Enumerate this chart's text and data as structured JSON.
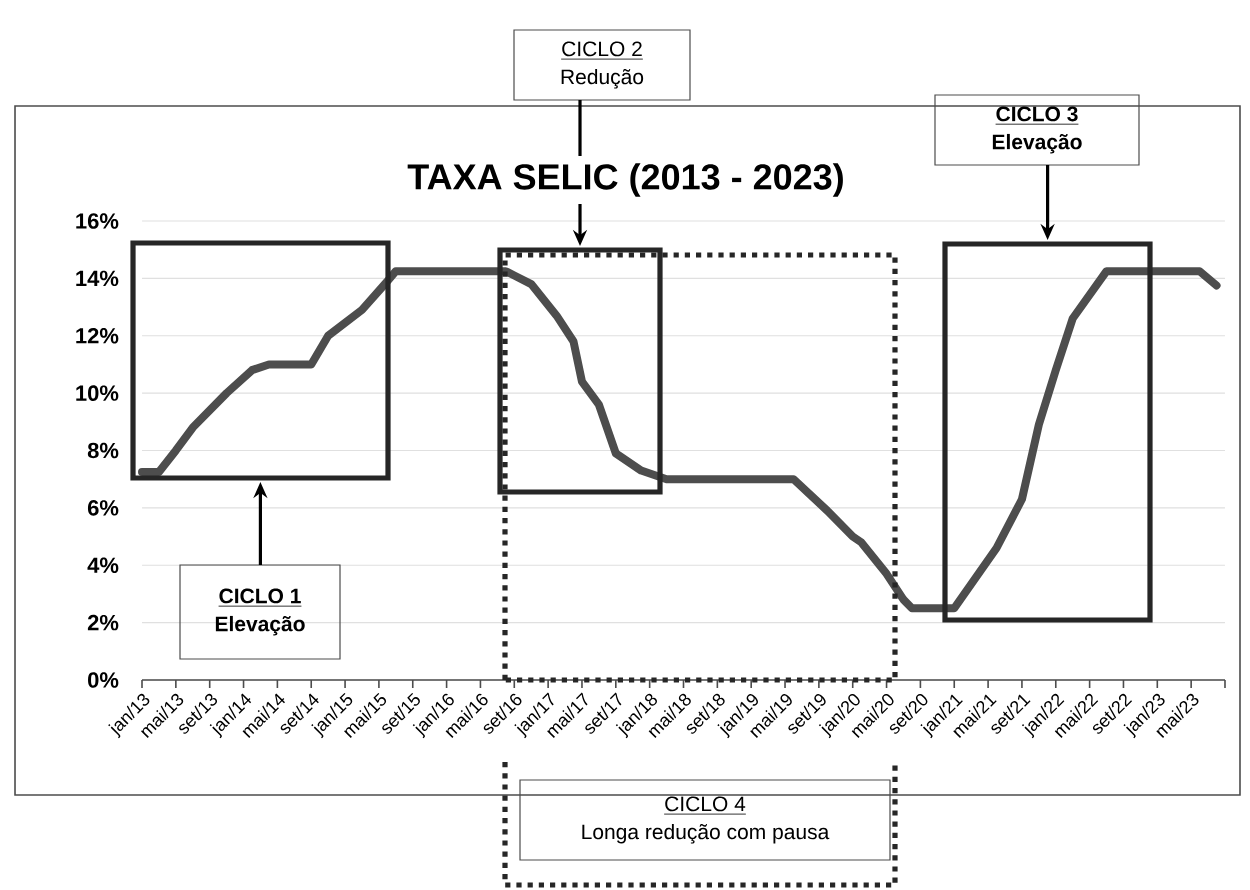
{
  "chart_data": {
    "type": "line",
    "title": "TAXA SELIC (2013 - 2023)",
    "x": [
      "2013-01",
      "2013-03",
      "2013-05",
      "2013-07",
      "2013-11",
      "2014-02",
      "2014-04",
      "2014-09",
      "2014-11",
      "2015-03",
      "2015-06",
      "2015-07",
      "2016-08",
      "2016-09",
      "2016-11",
      "2017-02",
      "2017-04",
      "2017-05",
      "2017-07",
      "2017-09",
      "2017-12",
      "2018-03",
      "2019-06",
      "2019-10",
      "2020-01",
      "2020-02",
      "2020-05",
      "2020-07",
      "2020-08",
      "2021-01",
      "2021-06",
      "2021-09",
      "2021-11",
      "2022-01",
      "2022-03",
      "2022-07",
      "2023-06",
      "2023-08"
    ],
    "values": [
      7.25,
      7.25,
      8.0,
      8.8,
      10.0,
      10.8,
      11.0,
      11.0,
      12.0,
      12.9,
      13.9,
      14.25,
      14.25,
      14.1,
      13.8,
      12.7,
      11.8,
      10.4,
      9.6,
      7.9,
      7.3,
      7.0,
      7.0,
      5.9,
      5.0,
      4.8,
      3.7,
      2.8,
      2.5,
      2.5,
      4.6,
      6.3,
      8.9,
      10.8,
      12.6,
      14.25,
      14.25,
      13.75
    ],
    "color": "#4d4d4d",
    "xlim": [
      "2013-01",
      "2023-09"
    ],
    "xticks": [
      {
        "value": "2013-01",
        "label": "jan/13"
      },
      {
        "value": "2013-05",
        "label": "mai/13"
      },
      {
        "value": "2013-09",
        "label": "set/13"
      },
      {
        "value": "2014-01",
        "label": "jan/14"
      },
      {
        "value": "2014-05",
        "label": "mai/14"
      },
      {
        "value": "2014-09",
        "label": "set/14"
      },
      {
        "value": "2015-01",
        "label": "jan/15"
      },
      {
        "value": "2015-05",
        "label": "mai/15"
      },
      {
        "value": "2015-09",
        "label": "set/15"
      },
      {
        "value": "2016-01",
        "label": "jan/16"
      },
      {
        "value": "2016-05",
        "label": "mai/16"
      },
      {
        "value": "2016-09",
        "label": "set/16"
      },
      {
        "value": "2017-01",
        "label": "jan/17"
      },
      {
        "value": "2017-05",
        "label": "mai/17"
      },
      {
        "value": "2017-09",
        "label": "set/17"
      },
      {
        "value": "2018-01",
        "label": "jan/18"
      },
      {
        "value": "2018-05",
        "label": "mai/18"
      },
      {
        "value": "2018-09",
        "label": "set/18"
      },
      {
        "value": "2019-01",
        "label": "jan/19"
      },
      {
        "value": "2019-05",
        "label": "mai/19"
      },
      {
        "value": "2019-09",
        "label": "set/19"
      },
      {
        "value": "2020-01",
        "label": "jan/20"
      },
      {
        "value": "2020-05",
        "label": "mai/20"
      },
      {
        "value": "2020-09",
        "label": "set/20"
      },
      {
        "value": "2021-01",
        "label": "jan/21"
      },
      {
        "value": "2021-05",
        "label": "mai/21"
      },
      {
        "value": "2021-09",
        "label": "set/21"
      },
      {
        "value": "2022-01",
        "label": "jan/22"
      },
      {
        "value": "2022-05",
        "label": "mai/22"
      },
      {
        "value": "2022-09",
        "label": "set/22"
      },
      {
        "value": "2023-01",
        "label": "jan/23"
      },
      {
        "value": "2023-05",
        "label": "mai/23"
      },
      {
        "value": "2023-09",
        "label": null
      }
    ],
    "ylim": [
      0,
      16
    ],
    "yticks": [
      {
        "value": 0,
        "label": "0%"
      },
      {
        "value": 2,
        "label": "2%"
      },
      {
        "value": 4,
        "label": "4%"
      },
      {
        "value": 6,
        "label": "6%"
      },
      {
        "value": 8,
        "label": "8%"
      },
      {
        "value": 10,
        "label": "10%"
      },
      {
        "value": 12,
        "label": "12%"
      },
      {
        "value": 14,
        "label": "14%"
      },
      {
        "value": 16,
        "label": "16%"
      }
    ],
    "grid": "y",
    "annotations": [
      "CICLO 1",
      "Elevação",
      "CICLO 2",
      "Redução",
      "CICLO 3",
      "Elevação",
      "CICLO 4",
      "Longa redução com pausa"
    ]
  }
}
